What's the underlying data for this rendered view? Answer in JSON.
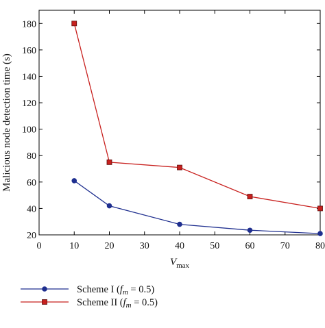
{
  "chart_data": {
    "type": "line",
    "x": [
      10,
      20,
      40,
      60,
      80
    ],
    "xlim": [
      0,
      80
    ],
    "ylim": [
      20,
      190
    ],
    "xticks": [
      0,
      10,
      20,
      30,
      40,
      50,
      60,
      70,
      80
    ],
    "yticks": [
      20,
      40,
      60,
      80,
      100,
      120,
      140,
      160,
      180
    ],
    "xlabel": "V",
    "xlabel_sub": "max",
    "ylabel": "Malicious node detection time (s)",
    "grid": false,
    "legend_position": "below",
    "series": [
      {
        "name": "Scheme I (f_m = 0.5)",
        "legend_prefix": "Scheme I (",
        "legend_var": "f",
        "legend_sub": "m",
        "legend_suffix": " = 0.5)",
        "values": [
          61,
          42,
          28,
          23.5,
          21
        ],
        "color": "#1f2f8f",
        "marker": "circle"
      },
      {
        "name": "Scheme II (f_m = 0.5)",
        "legend_prefix": "Scheme II (",
        "legend_var": "f",
        "legend_sub": "m",
        "legend_suffix": " = 0.5)",
        "values": [
          180,
          75,
          71,
          49,
          40
        ],
        "color": "#c8201e",
        "marker": "square"
      }
    ]
  }
}
